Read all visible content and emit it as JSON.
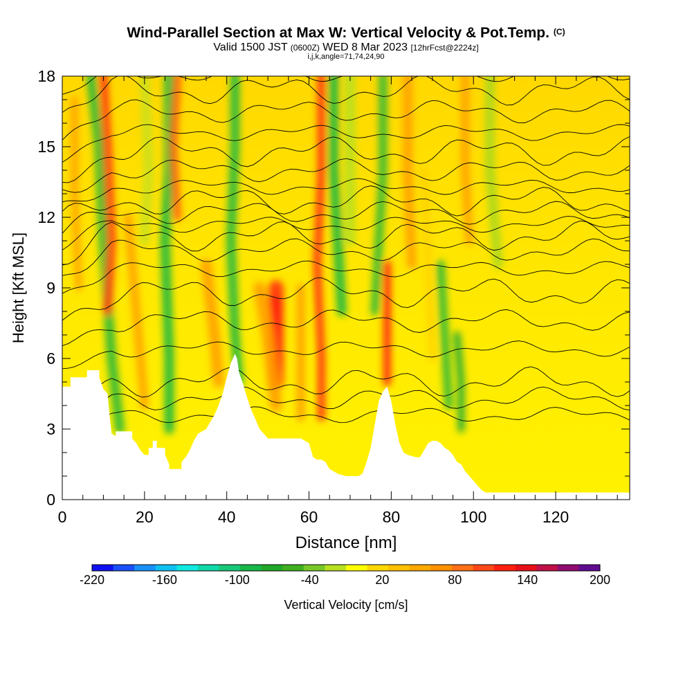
{
  "chart_data": {
    "type": "heatmap",
    "title": "Wind-Parallel Section at Max W: Vertical Velocity & Pot.Temp.",
    "title_mark": "(C)",
    "subtitle": {
      "prefix": "Valid 1500 JST",
      "utc": "(0600Z)",
      "date": "WED 8 Mar 2023",
      "fcst": "[12hrFcst@2224z]"
    },
    "params": "i,j,k,angle=71,74,24,90",
    "xlabel": "Distance [nm]",
    "ylabel": "Height [Kft MSL]",
    "xlim": [
      0,
      138
    ],
    "ylim": [
      0,
      18
    ],
    "xticks": [
      0,
      20,
      40,
      60,
      80,
      100,
      120
    ],
    "yticks": [
      0,
      3,
      6,
      9,
      12,
      15,
      18
    ],
    "colorbar": {
      "label": "Vertical Velocity [cm/s]",
      "tick_labels": [
        "-220",
        "-160",
        "-100",
        "-40",
        "20",
        "80",
        "140",
        "200"
      ],
      "tick_values": [
        -220,
        -160,
        -100,
        -40,
        20,
        80,
        140,
        200
      ],
      "min": -220,
      "max": 200,
      "colors": [
        "#1010f0",
        "#1a50f8",
        "#1890f8",
        "#10c0f0",
        "#10e8e0",
        "#10d8a8",
        "#18c878",
        "#18b848",
        "#20a828",
        "#40b020",
        "#78c828",
        "#b8e020",
        "#ffff00",
        "#ffd800",
        "#ffc000",
        "#ffa800",
        "#ff9000",
        "#ff7018",
        "#ff4818",
        "#ff2010",
        "#e81018",
        "#c01048",
        "#900c70",
        "#600c90"
      ]
    },
    "terrain": [
      [
        0,
        4.8
      ],
      [
        2,
        4.8
      ],
      [
        2,
        5.2
      ],
      [
        6,
        5.2
      ],
      [
        6,
        5.5
      ],
      [
        9,
        5.5
      ],
      [
        9,
        5.2
      ],
      [
        10,
        4.7
      ],
      [
        11,
        4.5
      ],
      [
        11.5,
        3.6
      ],
      [
        12,
        2.8
      ],
      [
        13,
        2.7
      ],
      [
        13,
        2.9
      ],
      [
        17,
        2.9
      ],
      [
        17,
        2.6
      ],
      [
        18,
        2.4
      ],
      [
        19,
        2.1
      ],
      [
        20,
        1.9
      ],
      [
        21,
        1.9
      ],
      [
        21,
        2.2
      ],
      [
        22,
        2.2
      ],
      [
        22,
        2.5
      ],
      [
        23,
        2.5
      ],
      [
        23,
        2.2
      ],
      [
        25,
        2.2
      ],
      [
        25,
        1.9
      ],
      [
        26,
        1.5
      ],
      [
        26,
        1.3
      ],
      [
        29,
        1.3
      ],
      [
        29,
        1.6
      ],
      [
        30,
        1.8
      ],
      [
        31,
        2.1
      ],
      [
        32,
        2.5
      ],
      [
        33,
        2.8
      ],
      [
        35,
        3.0
      ],
      [
        36,
        3.3
      ],
      [
        37,
        3.6
      ],
      [
        38,
        4.0
      ],
      [
        39,
        4.5
      ],
      [
        40,
        5.2
      ],
      [
        41,
        5.8
      ],
      [
        42,
        6.2
      ],
      [
        42.5,
        6.0
      ],
      [
        43,
        5.4
      ],
      [
        44,
        4.9
      ],
      [
        45,
        4.3
      ],
      [
        46,
        3.8
      ],
      [
        47,
        3.4
      ],
      [
        48,
        3.0
      ],
      [
        49,
        2.8
      ],
      [
        50,
        2.6
      ],
      [
        52,
        2.6
      ],
      [
        54,
        2.6
      ],
      [
        56,
        2.6
      ],
      [
        58,
        2.6
      ],
      [
        60,
        2.4
      ],
      [
        61,
        1.8
      ],
      [
        62,
        1.7
      ],
      [
        63,
        1.7
      ],
      [
        64,
        1.6
      ],
      [
        65,
        1.3
      ],
      [
        67,
        1.1
      ],
      [
        69,
        1.0
      ],
      [
        72,
        1.0
      ],
      [
        73,
        1.1
      ],
      [
        74,
        1.6
      ],
      [
        75,
        2.2
      ],
      [
        76,
        3.2
      ],
      [
        77,
        4.2
      ],
      [
        78,
        4.6
      ],
      [
        79,
        4.8
      ],
      [
        80,
        4.2
      ],
      [
        81,
        3.2
      ],
      [
        82,
        2.4
      ],
      [
        83,
        2.0
      ],
      [
        84,
        1.9
      ],
      [
        86,
        1.8
      ],
      [
        87,
        1.8
      ],
      [
        88,
        2.1
      ],
      [
        89,
        2.4
      ],
      [
        90,
        2.5
      ],
      [
        91,
        2.5
      ],
      [
        92,
        2.4
      ],
      [
        93,
        2.2
      ],
      [
        94,
        2.1
      ],
      [
        95,
        1.9
      ],
      [
        96,
        1.6
      ],
      [
        97,
        1.5
      ],
      [
        98,
        1.2
      ],
      [
        99,
        1.0
      ],
      [
        100,
        0.8
      ],
      [
        101,
        0.6
      ],
      [
        102,
        0.4
      ],
      [
        103,
        0.3
      ],
      [
        138,
        0.3
      ]
    ]
  }
}
